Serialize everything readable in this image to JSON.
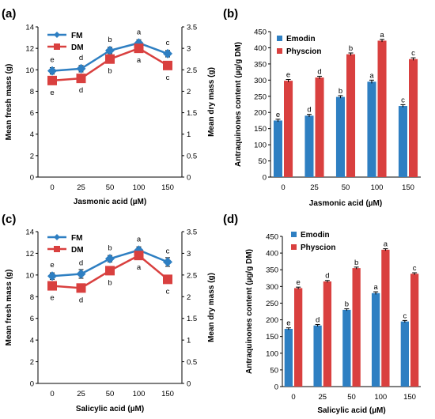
{
  "chart_data": [
    {
      "panel_label": "(a)",
      "type": "line",
      "xlabel": "Jasmonic acid (µM)",
      "ylabel": "Mean fresh mass (g)",
      "y2label": "Mean dry mass (g)",
      "categories": [
        "0",
        "25",
        "50",
        "100",
        "150"
      ],
      "ylim": [
        0,
        14
      ],
      "yticks": [
        "0",
        "2",
        "4",
        "6",
        "8",
        "10",
        "12",
        "14"
      ],
      "y2lim": [
        0,
        3.5
      ],
      "y2ticks": [
        "0",
        "0.5",
        "1",
        "1.5",
        "2",
        "2.5",
        "3",
        "3.5"
      ],
      "legend_position": "top-left",
      "series": [
        {
          "name": "FM",
          "axis": "left",
          "color": "#2e7fc2",
          "marker": "diamond",
          "values": [
            9.9,
            10.1,
            11.8,
            12.5,
            11.5
          ],
          "err": [
            0.3,
            0.3,
            0.3,
            0.3,
            0.3
          ],
          "letters": [
            "e",
            "d",
            "b",
            "a",
            "c"
          ]
        },
        {
          "name": "DM",
          "axis": "right",
          "color": "#d9403f",
          "marker": "square",
          "values": [
            2.25,
            2.3,
            2.75,
            3.0,
            2.6
          ],
          "err": [
            0.08,
            0.08,
            0.08,
            0.08,
            0.08
          ],
          "letters": [
            "e",
            "d",
            "b",
            "a",
            "c"
          ]
        }
      ]
    },
    {
      "panel_label": "(b)",
      "type": "bar",
      "xlabel": "Jasmonic acid (µM)",
      "ylabel": "Antraquinones content (µg/g DM)",
      "categories": [
        "0",
        "25",
        "50",
        "100",
        "150"
      ],
      "ylim": [
        0,
        450
      ],
      "yticks": [
        "0",
        "50",
        "100",
        "150",
        "200",
        "250",
        "300",
        "350",
        "400",
        "450"
      ],
      "legend_position": "top-left",
      "series": [
        {
          "name": "Emodin",
          "color": "#2e7fc2",
          "values": [
            175,
            190,
            248,
            295,
            220
          ],
          "err": [
            4,
            4,
            4,
            5,
            4
          ],
          "letters": [
            "e",
            "d",
            "b",
            "a",
            "c"
          ]
        },
        {
          "name": "Physcion",
          "color": "#d9403f",
          "values": [
            298,
            308,
            380,
            422,
            365
          ],
          "err": [
            4,
            4,
            4,
            4,
            4
          ],
          "letters": [
            "e",
            "d",
            "b",
            "a",
            "c"
          ]
        }
      ]
    },
    {
      "panel_label": "(c)",
      "type": "line",
      "xlabel": "Salicylic acid (µM)",
      "ylabel": "Mean fresh mass (g)",
      "y2label": "Mean dry mass (g)",
      "categories": [
        "0",
        "25",
        "50",
        "100",
        "150"
      ],
      "ylim": [
        0,
        14
      ],
      "yticks": [
        "0",
        "2",
        "4",
        "6",
        "8",
        "10",
        "12",
        "14"
      ],
      "y2lim": [
        0,
        3.5
      ],
      "y2ticks": [
        "0",
        "0.5",
        "1",
        "1.5",
        "2",
        "2.5",
        "3",
        "3.5"
      ],
      "legend_position": "top-left",
      "series": [
        {
          "name": "FM",
          "axis": "left",
          "color": "#2e7fc2",
          "marker": "diamond",
          "values": [
            9.9,
            10.1,
            11.5,
            12.3,
            11.2
          ],
          "err": [
            0.3,
            0.4,
            0.3,
            0.3,
            0.4
          ],
          "letters": [
            "e",
            "d",
            "b",
            "a",
            "c"
          ]
        },
        {
          "name": "DM",
          "axis": "right",
          "color": "#d9403f",
          "marker": "square",
          "values": [
            2.25,
            2.2,
            2.6,
            2.95,
            2.4
          ],
          "err": [
            0.08,
            0.08,
            0.08,
            0.08,
            0.08
          ],
          "letters": [
            "e",
            "d",
            "b",
            "a",
            "c"
          ]
        }
      ]
    },
    {
      "panel_label": "(d)",
      "type": "bar",
      "xlabel": "Salicylic acid (µM)",
      "ylabel": "Antraquinones content (µg/g DM)",
      "categories": [
        "0",
        "25",
        "50",
        "100",
        "150"
      ],
      "ylim": [
        0,
        450
      ],
      "yticks": [
        "0",
        "50",
        "100",
        "150",
        "200",
        "250",
        "300",
        "350",
        "400",
        "450"
      ],
      "legend_position": "top-left",
      "series": [
        {
          "name": "Emodin",
          "color": "#2e7fc2",
          "values": [
            173,
            183,
            230,
            280,
            195
          ],
          "err": [
            3,
            3,
            3,
            4,
            3
          ],
          "letters": [
            "e",
            "d",
            "b",
            "a",
            "c"
          ]
        },
        {
          "name": "Physcion",
          "color": "#d9403f",
          "values": [
            295,
            315,
            355,
            410,
            338
          ],
          "err": [
            3,
            3,
            3,
            3,
            3
          ],
          "letters": [
            "e",
            "d",
            "b",
            "a",
            "c"
          ]
        }
      ]
    }
  ]
}
